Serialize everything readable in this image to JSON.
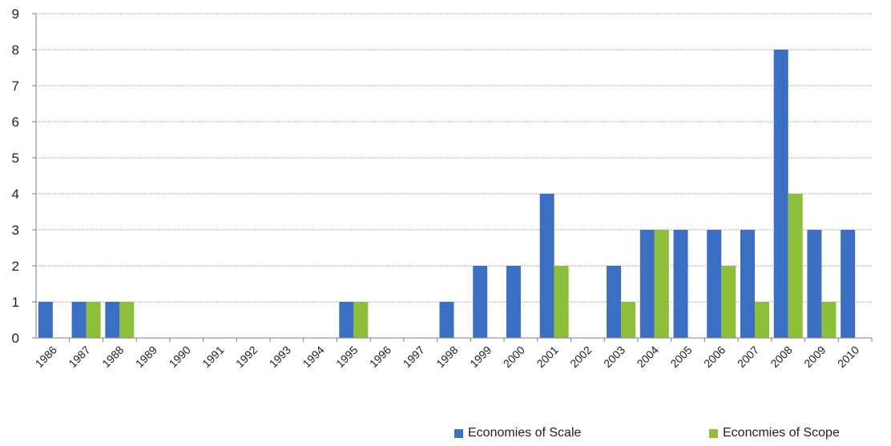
{
  "chart_data": {
    "type": "bar",
    "categories": [
      "1986",
      "1987",
      "1988",
      "1989",
      "1990",
      "1991",
      "1992",
      "1993",
      "1994",
      "1995",
      "1996",
      "1997",
      "1998",
      "1999",
      "2000",
      "2001",
      "2002",
      "2003",
      "2004",
      "2005",
      "2006",
      "2007",
      "2008",
      "2009",
      "2010"
    ],
    "series": [
      {
        "name": "Economies of Scale",
        "color": "#3b6fc4",
        "values": [
          1,
          1,
          1,
          0,
          0,
          0,
          0,
          0,
          0,
          1,
          0,
          0,
          1,
          2,
          2,
          4,
          0,
          2,
          3,
          3,
          3,
          3,
          8,
          3,
          3
        ]
      },
      {
        "name": "Econcmies of Scope",
        "color": "#8dbf3a",
        "values": [
          0,
          1,
          1,
          0,
          0,
          0,
          0,
          0,
          0,
          1,
          0,
          0,
          0,
          0,
          0,
          2,
          0,
          1,
          3,
          0,
          2,
          1,
          4,
          1,
          0
        ]
      }
    ],
    "yticks": [
      "0",
      "1",
      "2",
      "3",
      "4",
      "5",
      "6",
      "7",
      "8",
      "9"
    ],
    "ylim": [
      0,
      9
    ],
    "grid": "horizontal dotted",
    "legend_position": "bottom-right"
  }
}
